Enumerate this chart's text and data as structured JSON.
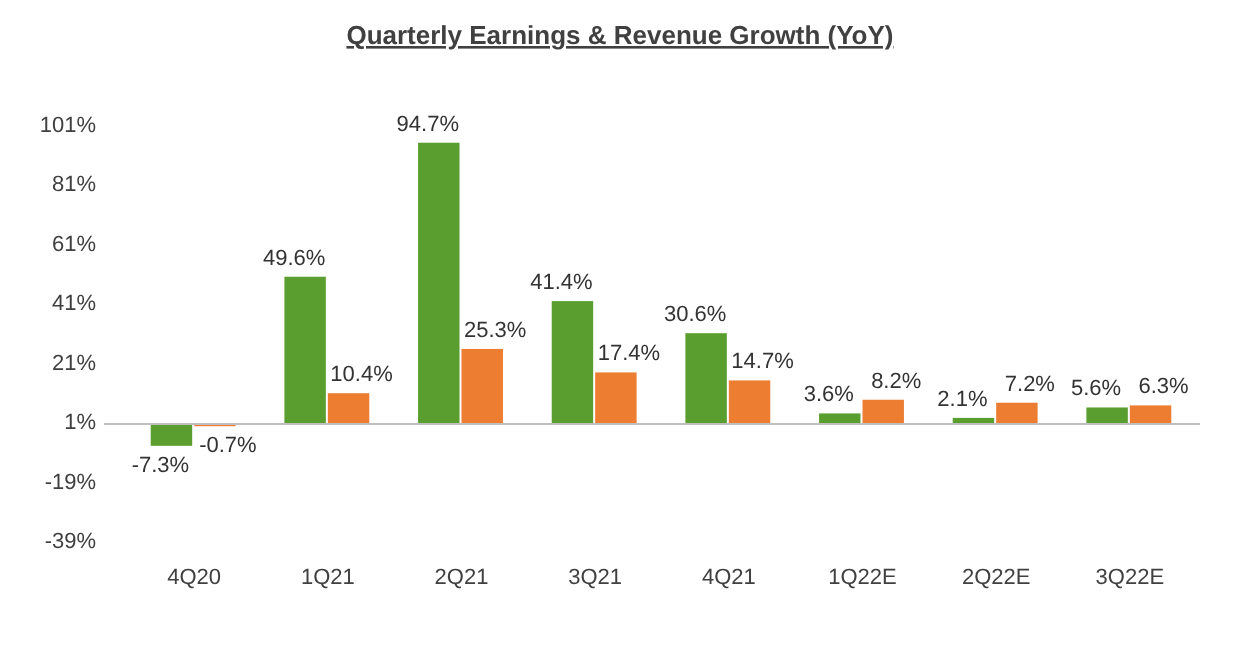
{
  "chart_data": {
    "type": "bar",
    "title": "Quarterly Earnings & Revenue Growth (YoY)",
    "categories": [
      "4Q20",
      "1Q21",
      "2Q21",
      "3Q21",
      "4Q21",
      "1Q22E",
      "2Q22E",
      "3Q22E"
    ],
    "series": [
      {
        "color": "#5a9e2f",
        "values": [
          -7.3,
          49.6,
          94.7,
          41.4,
          30.6,
          3.6,
          2.1,
          5.6
        ],
        "value_labels": [
          "-7.3%",
          "49.6%",
          "94.7%",
          "41.4%",
          "30.6%",
          "3.6%",
          "2.1%",
          "5.6%"
        ]
      },
      {
        "color": "#ed7d31",
        "values": [
          -0.7,
          10.4,
          25.3,
          17.4,
          14.7,
          8.2,
          7.2,
          6.3
        ],
        "value_labels": [
          "-0.7%",
          "10.4%",
          "25.3%",
          "17.4%",
          "14.7%",
          "8.2%",
          "7.2%",
          "6.3%"
        ]
      }
    ],
    "ylim": [
      -39,
      101
    ],
    "yticks": [
      {
        "value": -39,
        "label": "-39%"
      },
      {
        "value": -19,
        "label": "-19%"
      },
      {
        "value": 1,
        "label": "1%"
      },
      {
        "value": 21,
        "label": "21%"
      },
      {
        "value": 41,
        "label": "41%"
      },
      {
        "value": 61,
        "label": "61%"
      },
      {
        "value": 81,
        "label": "81%"
      },
      {
        "value": 101,
        "label": "101%"
      }
    ]
  }
}
